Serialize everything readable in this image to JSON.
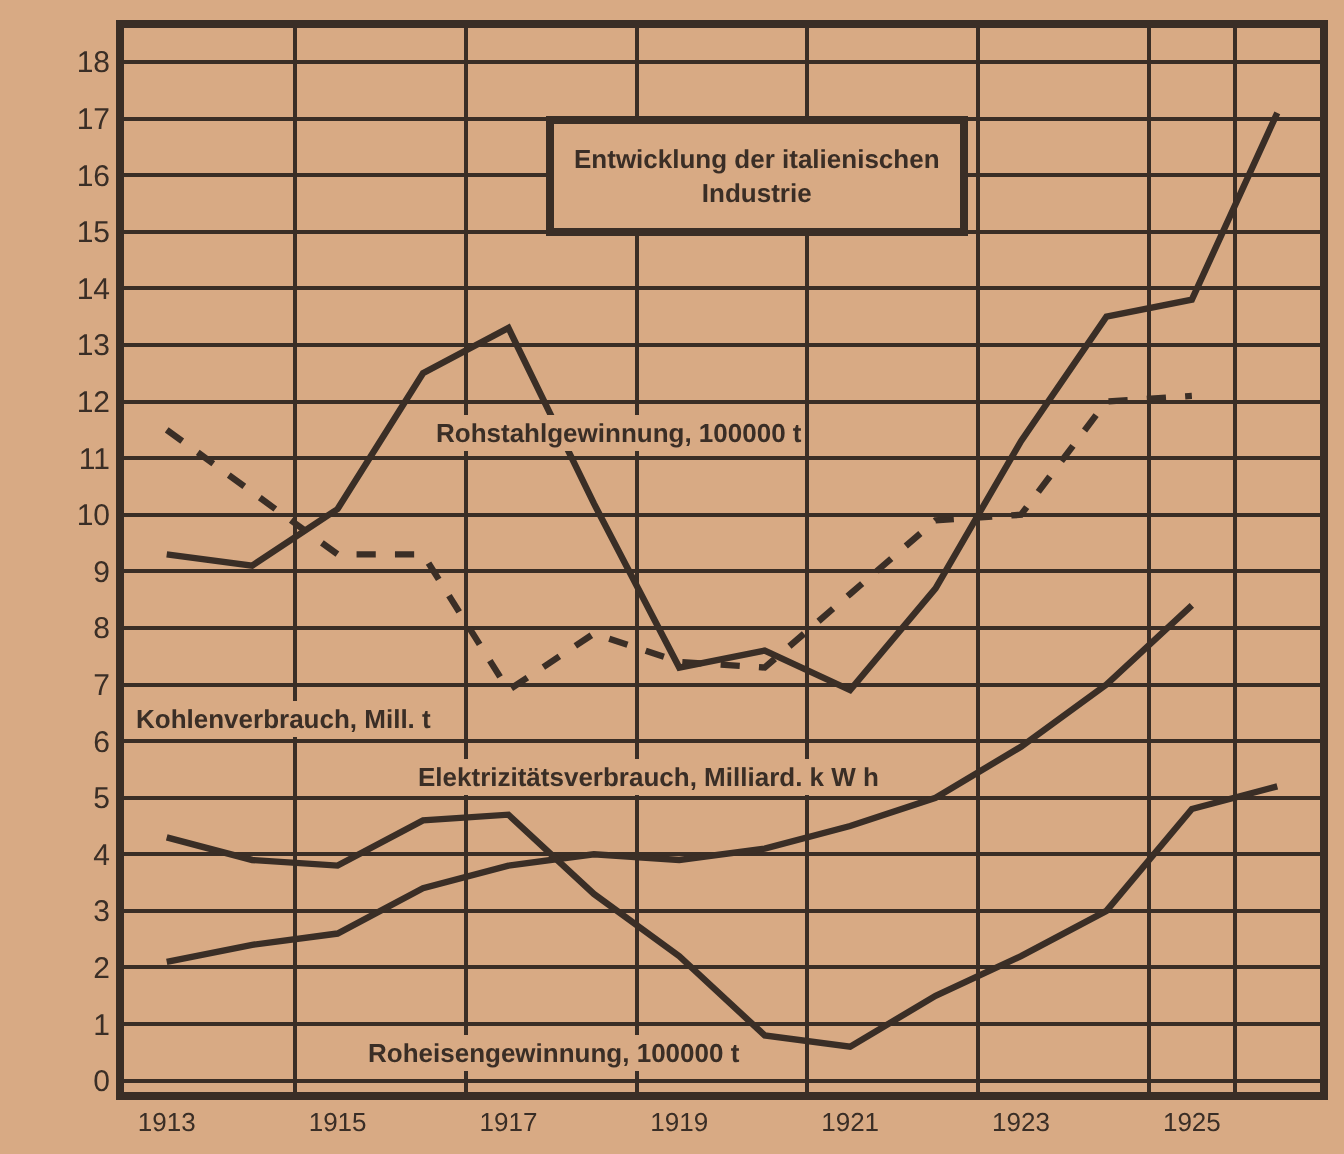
{
  "chart_data": {
    "type": "line",
    "title": "Entwicklung der italienischen Industrie",
    "categories": [
      "1913",
      null,
      "1915",
      null,
      "1917",
      null,
      "1919",
      null,
      "1921",
      null,
      "1923",
      null,
      "1925",
      null
    ],
    "series": [
      {
        "name": "Rohstahlgewinnung, 100000 t",
        "color": "#3a2e26",
        "line_style": "solid",
        "values": [
          9.3,
          9.1,
          10.1,
          12.5,
          13.3,
          10.2,
          7.3,
          7.6,
          6.9,
          8.7,
          11.3,
          13.5,
          13.8,
          17.1
        ]
      },
      {
        "name": "Kohlenverbrauch, Mill. t",
        "color": "#3a2e26",
        "line_style": "dashed",
        "values": [
          11.5,
          10.4,
          9.3,
          9.3,
          6.9,
          7.9,
          7.4,
          7.3,
          8.6,
          9.9,
          10.0,
          12.0,
          12.1,
          null
        ]
      },
      {
        "name": "Elektrizitätsverbrauch, Milliard. k W h",
        "color": "#3a2e26",
        "line_style": "solid",
        "values": [
          2.1,
          2.4,
          2.6,
          3.4,
          3.8,
          4.0,
          3.9,
          4.1,
          4.5,
          5.0,
          5.9,
          7.0,
          8.4,
          null
        ]
      },
      {
        "name": "Roheisengewinnung, 100000 t",
        "color": "#3a2e26",
        "line_style": "solid",
        "values": [
          4.3,
          3.9,
          3.8,
          4.6,
          4.7,
          3.3,
          2.2,
          0.8,
          0.6,
          1.5,
          2.2,
          3.0,
          4.8,
          5.2
        ]
      }
    ],
    "ylim": [
      -0.2,
      18.6
    ],
    "yticks": [
      0,
      1,
      2,
      3,
      4,
      5,
      6,
      7,
      8,
      9,
      10,
      11,
      12,
      13,
      14,
      15,
      16,
      17,
      18
    ],
    "grid": true,
    "legend": false
  }
}
